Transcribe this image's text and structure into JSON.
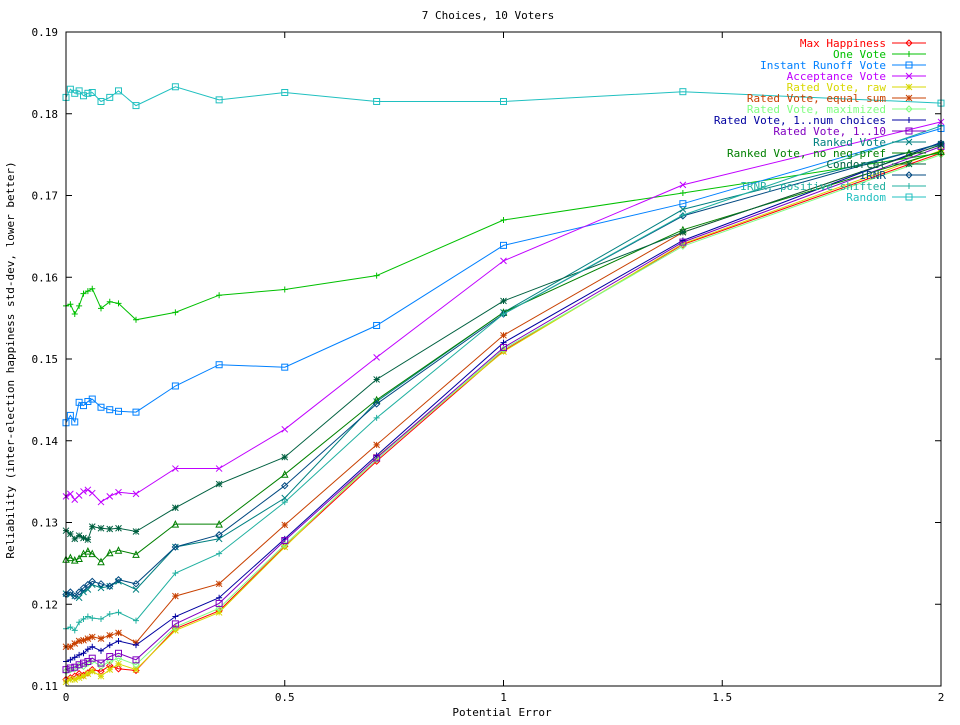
{
  "chart_data": {
    "type": "line",
    "title": "7 Choices, 10 Voters",
    "xlabel": "Potential Error",
    "ylabel": "Reliability (inter-election happiness std-dev, lower better)",
    "xlim": [
      0,
      2
    ],
    "ylim": [
      0.11,
      0.19
    ],
    "xticks": [
      0,
      0.5,
      1,
      1.5,
      2
    ],
    "xtick_labels": [
      "0",
      "0.5",
      "1",
      "1.5",
      "2"
    ],
    "yticks": [
      0.11,
      0.12,
      0.13,
      0.14,
      0.15,
      0.16,
      0.17,
      0.18,
      0.19
    ],
    "ytick_labels": [
      "0.11",
      "0.12",
      "0.13",
      "0.14",
      "0.15",
      "0.16",
      "0.17",
      "0.18",
      "0.19"
    ],
    "grid": false,
    "legend_position": "top-right",
    "x": [
      0,
      0.01,
      0.02,
      0.03,
      0.04,
      0.05,
      0.06,
      0.08,
      0.1,
      0.12,
      0.16,
      0.25,
      0.35,
      0.5,
      0.71,
      1,
      1.41,
      2
    ],
    "series": [
      {
        "name": "Max Happiness",
        "color": "#ff0000",
        "marker": "diamond",
        "values": [
          0.1108,
          0.111,
          0.1112,
          0.1115,
          0.1113,
          0.1116,
          0.112,
          0.1118,
          0.1125,
          0.1121,
          0.1119,
          0.117,
          0.1192,
          0.1271,
          0.1375,
          0.151,
          0.164,
          0.1752
        ]
      },
      {
        "name": "One Vote",
        "color": "#00c000",
        "marker": "plus",
        "values": [
          0.1565,
          0.1567,
          0.1555,
          0.1565,
          0.158,
          0.1583,
          0.1586,
          0.1562,
          0.157,
          0.1568,
          0.1548,
          0.1557,
          0.1578,
          0.1585,
          0.1602,
          0.167,
          0.1703,
          0.1752
        ]
      },
      {
        "name": "Instant Runoff Vote",
        "color": "#0080ff",
        "marker": "square",
        "values": [
          0.1422,
          0.1431,
          0.1423,
          0.1447,
          0.1443,
          0.1448,
          0.1451,
          0.1441,
          0.1438,
          0.1436,
          0.1435,
          0.1467,
          0.1493,
          0.149,
          0.1541,
          0.1639,
          0.169,
          0.1782
        ]
      },
      {
        "name": "Acceptance Vote",
        "color": "#c000ff",
        "marker": "cross",
        "values": [
          0.1332,
          0.1335,
          0.1328,
          0.1333,
          0.1338,
          0.134,
          0.1336,
          0.1325,
          0.1332,
          0.1337,
          0.1335,
          0.1366,
          0.1366,
          0.1414,
          0.1502,
          0.162,
          0.1713,
          0.179
        ]
      },
      {
        "name": "Rated Vote, raw",
        "color": "#d8d800",
        "marker": "star",
        "values": [
          0.1105,
          0.1108,
          0.1108,
          0.111,
          0.1112,
          0.1115,
          0.1118,
          0.1112,
          0.112,
          0.1127,
          0.112,
          0.1168,
          0.119,
          0.127,
          0.138,
          0.1509,
          0.1641,
          0.1755
        ]
      },
      {
        "name": "Rated Vote, equal sum",
        "color": "#c84000",
        "marker": "star",
        "values": [
          0.1148,
          0.1148,
          0.1152,
          0.1155,
          0.1156,
          0.1158,
          0.116,
          0.1158,
          0.1162,
          0.1165,
          0.1153,
          0.121,
          0.1225,
          0.1297,
          0.1395,
          0.1529,
          0.1655,
          0.1762
        ]
      },
      {
        "name": "Rated Vote, maximized",
        "color": "#80ff80",
        "marker": "diamond",
        "values": [
          0.1118,
          0.112,
          0.1121,
          0.1125,
          0.1124,
          0.1128,
          0.1131,
          0.1124,
          0.113,
          0.1134,
          0.1126,
          0.1172,
          0.1195,
          0.1273,
          0.1377,
          0.1512,
          0.1638,
          0.175
        ]
      },
      {
        "name": "Rated Vote, 1..num choices",
        "color": "#0000a0",
        "marker": "plus",
        "values": [
          0.113,
          0.1132,
          0.1135,
          0.1138,
          0.114,
          0.1145,
          0.1148,
          0.1143,
          0.115,
          0.1155,
          0.115,
          0.1185,
          0.1208,
          0.128,
          0.1382,
          0.152,
          0.1645,
          0.1765
        ]
      },
      {
        "name": "Rated Vote, 1..10",
        "color": "#8000c0",
        "marker": "square",
        "values": [
          0.112,
          0.1122,
          0.1123,
          0.1126,
          0.1128,
          0.113,
          0.1134,
          0.1128,
          0.1136,
          0.114,
          0.1132,
          0.1176,
          0.1201,
          0.1278,
          0.1379,
          0.1514,
          0.1643,
          0.176
        ]
      },
      {
        "name": "Ranked Vote",
        "color": "#008080",
        "marker": "cross",
        "values": [
          0.1213,
          0.1212,
          0.121,
          0.1208,
          0.1215,
          0.1218,
          0.1224,
          0.122,
          0.1222,
          0.1228,
          0.1218,
          0.127,
          0.128,
          0.133,
          0.1448,
          0.1557,
          0.1683,
          0.1763
        ]
      },
      {
        "name": "Ranked Vote, no neg-pref",
        "color": "#008000",
        "marker": "triangle",
        "values": [
          0.1255,
          0.1257,
          0.1254,
          0.1256,
          0.1262,
          0.1265,
          0.1262,
          0.1252,
          0.1263,
          0.1266,
          0.1261,
          0.1298,
          0.1298,
          0.1359,
          0.145,
          0.1557,
          0.1658,
          0.1754
        ]
      },
      {
        "name": "Condorcet",
        "color": "#006040",
        "marker": "star",
        "values": [
          0.129,
          0.1286,
          0.128,
          0.1284,
          0.1281,
          0.1279,
          0.1295,
          0.1293,
          0.1292,
          0.1293,
          0.1289,
          0.1318,
          0.1347,
          0.138,
          0.1475,
          0.1571,
          0.1655,
          0.1762
        ]
      },
      {
        "name": "IRNR",
        "color": "#004880",
        "marker": "diamond",
        "values": [
          0.1212,
          0.1215,
          0.121,
          0.1215,
          0.122,
          0.1224,
          0.1228,
          0.1225,
          0.1222,
          0.123,
          0.1225,
          0.127,
          0.1285,
          0.1345,
          0.1445,
          0.1555,
          0.1675,
          0.1764
        ]
      },
      {
        "name": "IRNR, positive shifted",
        "color": "#20b0a0",
        "marker": "plus",
        "values": [
          0.117,
          0.1172,
          0.1168,
          0.1178,
          0.1182,
          0.1185,
          0.1183,
          0.1182,
          0.1188,
          0.119,
          0.118,
          0.1238,
          0.1262,
          0.1325,
          0.1428,
          0.1555,
          0.1676,
          0.1785
        ]
      },
      {
        "name": "Random",
        "color": "#20c0c0",
        "marker": "square",
        "values": [
          0.182,
          0.183,
          0.1825,
          0.1828,
          0.1822,
          0.1825,
          0.1826,
          0.1815,
          0.182,
          0.1828,
          0.181,
          0.1833,
          0.1817,
          0.1826,
          0.1815,
          0.1815,
          0.1827,
          0.1813
        ]
      }
    ]
  }
}
